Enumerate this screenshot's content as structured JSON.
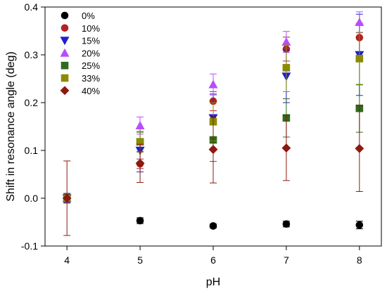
{
  "chart_data": {
    "type": "scatter",
    "xlabel": "pH",
    "ylabel": "Shift in resonance angle (deg)",
    "xlim": [
      3.7,
      8.3
    ],
    "ylim": [
      -0.1,
      0.4
    ],
    "xticks": [
      "4",
      "5",
      "6",
      "7",
      "8"
    ],
    "yticks": [
      "-0.1",
      "0.0",
      "0.1",
      "0.2",
      "0.3",
      "0.4"
    ],
    "legend_position": "top-left",
    "grid": false,
    "x": [
      4,
      5,
      6,
      7,
      8
    ],
    "series": [
      {
        "name": "0%",
        "color": "#000000",
        "marker": "circle",
        "values": [
          0.0,
          -0.047,
          -0.058,
          -0.054,
          -0.056
        ],
        "errors": [
          0.008,
          0.006,
          0.004,
          0.006,
          0.008
        ]
      },
      {
        "name": "10%",
        "color": "#b22222",
        "marker": "circle",
        "values": [
          0.0,
          0.072,
          0.203,
          0.312,
          0.336
        ],
        "errors": [
          0.01,
          0.01,
          0.02,
          0.025,
          0.03
        ]
      },
      {
        "name": "15%",
        "color": "#1f1fd0",
        "marker": "triangle-down",
        "values": [
          0.0,
          0.1,
          0.168,
          0.255,
          0.3
        ],
        "errors": [
          0.01,
          0.045,
          0.05,
          0.055,
          0.085
        ]
      },
      {
        "name": "20%",
        "color": "#b84dff",
        "marker": "triangle-up",
        "values": [
          0.0,
          0.152,
          0.238,
          0.327,
          0.368
        ],
        "errors": [
          0.005,
          0.018,
          0.022,
          0.022,
          0.022
        ]
      },
      {
        "name": "25%",
        "color": "#2e6b1e",
        "marker": "square",
        "values": [
          0.0,
          0.118,
          0.122,
          0.168,
          0.188
        ],
        "errors": [
          0.005,
          0.02,
          0.045,
          0.04,
          0.05
        ]
      },
      {
        "name": "33%",
        "color": "#8b8b00",
        "marker": "square",
        "values": [
          0.0,
          0.118,
          0.16,
          0.273,
          0.292
        ],
        "errors": [
          0.005,
          0.022,
          0.04,
          0.05,
          0.055
        ]
      },
      {
        "name": "40%",
        "color": "#8b1a10",
        "marker": "diamond",
        "values": [
          0.0,
          0.073,
          0.102,
          0.105,
          0.104
        ],
        "errors": [
          0.078,
          0.04,
          0.07,
          0.068,
          0.09
        ]
      }
    ]
  }
}
